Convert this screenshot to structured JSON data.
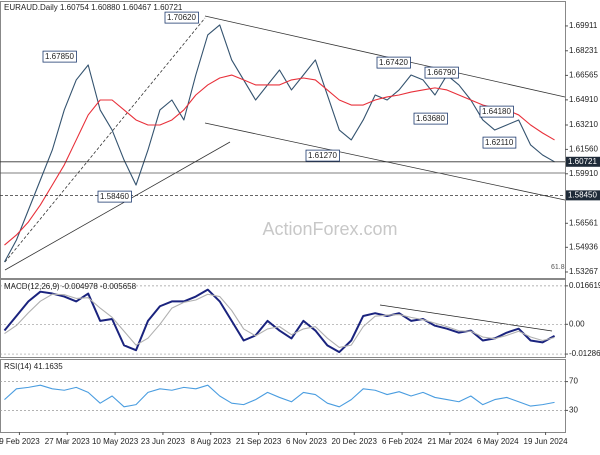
{
  "header": "EURAUD.Daily 1.60754 1.60880 1.60467 1.60721",
  "watermark": "ActionForex.com",
  "chart_data": [
    {
      "type": "line",
      "x": [
        -10,
        -2,
        6,
        14,
        22,
        30,
        38,
        46,
        54,
        62,
        70,
        78,
        86,
        94,
        102,
        110,
        118,
        126,
        134,
        142,
        150,
        158,
        166,
        174,
        182,
        190,
        198,
        206,
        214,
        222,
        230,
        238,
        246,
        254,
        262,
        270,
        278,
        286,
        294,
        302,
        310,
        318,
        326,
        334,
        342,
        350,
        358
      ],
      "xlim": [
        -13,
        365
      ],
      "xticks": [
        {
          "value": 0,
          "label": "9 Feb 2023"
        },
        {
          "value": 32,
          "label": "27 Mar 2023"
        },
        {
          "value": 64,
          "label": "10 May 2023"
        },
        {
          "value": 96,
          "label": "23 Jun 2023"
        },
        {
          "value": 128,
          "label": "8 Aug 2023"
        },
        {
          "value": 160,
          "label": "21 Sep 2023"
        },
        {
          "value": 192,
          "label": "6 Nov 2023"
        },
        {
          "value": 224,
          "label": "20 Dec 2023"
        },
        {
          "value": 256,
          "label": "6 Feb 2024"
        },
        {
          "value": 288,
          "label": "21 Mar 2024"
        },
        {
          "value": 320,
          "label": "6 May 2024"
        },
        {
          "value": 352,
          "label": "19 Jun 2024"
        }
      ],
      "ylim": [
        1.5286,
        1.7153
      ],
      "yticks": [
        1.53267,
        1.54936,
        1.56561,
        {
          "value": 1.5991,
          "label": "1.59910"
        },
        {
          "value": 1.6156,
          "label": "1.61560"
        },
        {
          "value": 1.6321,
          "label": "1.63210"
        },
        {
          "value": 1.6491,
          "label": "1.64910"
        },
        1.66565,
        1.68231,
        1.69911
      ],
      "series": [
        {
          "color": "#34536f",
          "values": [
            1.5394,
            1.5543,
            1.5746,
            1.5949,
            1.6152,
            1.6423,
            1.6626,
            1.6727,
            1.6423,
            1.6287,
            1.6084,
            1.5915,
            1.6152,
            1.6423,
            1.649,
            1.6355,
            1.6659,
            1.693,
            1.6998,
            1.6761,
            1.6626,
            1.649,
            1.6592,
            1.6693,
            1.6558,
            1.6659,
            1.6761,
            1.6524,
            1.6287,
            1.622,
            1.6355,
            1.6524,
            1.649,
            1.6558,
            1.6659,
            1.6626,
            1.6524,
            1.6659,
            1.6592,
            1.649,
            1.6355,
            1.6287,
            1.6321,
            1.6355,
            1.6186,
            1.6118,
            1.6072
          ]
        },
        {
          "color": "#e8303a",
          "values": [
            1.5509,
            1.5577,
            1.5665,
            1.578,
            1.5915,
            1.6051,
            1.622,
            1.6389,
            1.649,
            1.649,
            1.6423,
            1.6355,
            1.6321,
            1.6321,
            1.6355,
            1.6423,
            1.6524,
            1.6592,
            1.6639,
            1.6659,
            1.6626,
            1.6592,
            1.6592,
            1.6592,
            1.6626,
            1.6639,
            1.6626,
            1.6558,
            1.649,
            1.6456,
            1.6456,
            1.649,
            1.6511,
            1.6524,
            1.6544,
            1.6558,
            1.6572,
            1.6558,
            1.6524,
            1.649,
            1.6456,
            1.6436,
            1.6423,
            1.6389,
            1.6321,
            1.6267,
            1.622
          ]
        }
      ],
      "annotations": [
        "1.70620",
        "1.67850",
        "1.58460",
        "1.61270",
        "1.67420",
        "1.66790",
        "1.63680",
        "1.64180",
        "1.62110",
        "61.8"
      ],
      "price_labels": [
        {
          "value": 1.60721,
          "label": "1.60721"
        },
        {
          "value": 1.5845,
          "label": "1.58450"
        }
      ]
    },
    {
      "type": "line",
      "title": "MACD(12,26,9) -0.004978 -0.005658",
      "ylim": [
        -0.01413,
        0.01915
      ],
      "yticks": [
        0.016619,
        {
          "value": 0,
          "label": "0.00"
        },
        -0.012864
      ],
      "grid": true,
      "series": [
        {
          "color": "#1a237e",
          "values": [
            -0.0027,
            0.0036,
            0.0099,
            0.0141,
            0.0133,
            0.012,
            0.0099,
            0.0133,
            0.0015,
            0.0023,
            -0.0091,
            -0.0112,
            0.0015,
            0.0078,
            0.0099,
            0.0099,
            0.012,
            0.015,
            0.0099,
            0.0015,
            -0.007,
            -0.0048,
            0.0015,
            -0.0027,
            -0.0061,
            0.0015,
            -0.0027,
            -0.0091,
            -0.012,
            -0.007,
            0.0036,
            0.0048,
            0.0036,
            0.0048,
            0.0015,
            0.0023,
            -0.0006,
            -0.0019,
            -0.0036,
            -0.0027,
            -0.007,
            -0.0061,
            -0.0036,
            -0.0019,
            -0.007,
            -0.0078,
            -0.005
          ]
        },
        {
          "color": "#b0b0b0",
          "values": [
            -0.004,
            -0.0005,
            0.005,
            0.01,
            0.013,
            0.0128,
            0.0112,
            0.0115,
            0.007,
            0.003,
            -0.003,
            -0.009,
            -0.006,
            0,
            0.007,
            0.0095,
            0.0105,
            0.013,
            0.012,
            0.006,
            -0.002,
            -0.005,
            -0.002,
            -0.001,
            -0.0045,
            -0.002,
            -0.001,
            -0.006,
            -0.01,
            -0.009,
            -0.001,
            0.0035,
            0.004,
            0.0042,
            0.003,
            0.002,
            0.0005,
            -0.001,
            -0.0028,
            -0.003,
            -0.0055,
            -0.0062,
            -0.0048,
            -0.003,
            -0.0055,
            -0.007,
            -0.0057
          ]
        }
      ]
    },
    {
      "type": "line",
      "title": "RSI(14) 41.1635",
      "ylim": [
        0,
        100
      ],
      "yticks": [
        30,
        70
      ],
      "grid": true,
      "series": [
        {
          "color": "#4a9de0",
          "values": [
            45,
            60,
            62,
            65,
            60,
            58,
            62,
            55,
            40,
            50,
            35,
            38,
            55,
            60,
            58,
            62,
            60,
            65,
            50,
            40,
            38,
            45,
            55,
            48,
            42,
            55,
            52,
            40,
            35,
            45,
            60,
            58,
            52,
            56,
            50,
            55,
            48,
            45,
            42,
            50,
            38,
            45,
            48,
            42,
            36,
            38,
            41.1635
          ]
        }
      ]
    }
  ]
}
